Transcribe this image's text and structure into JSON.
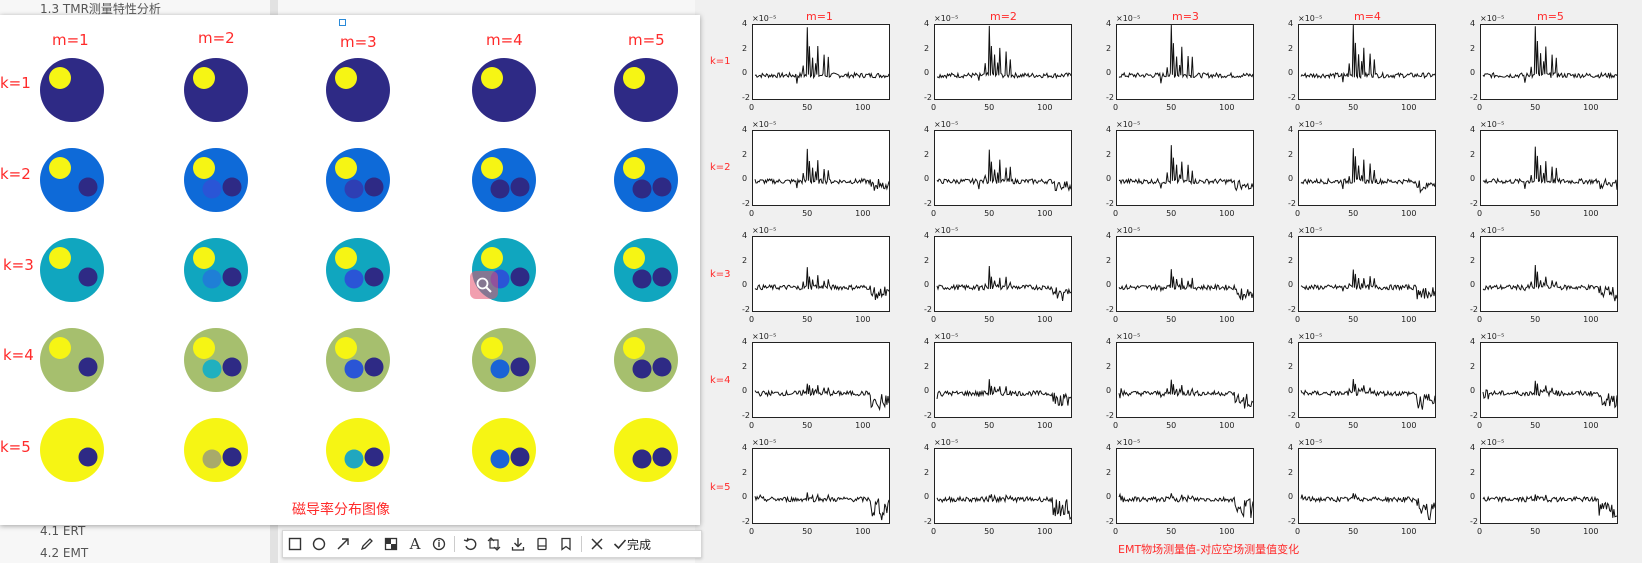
{
  "document": {
    "toc_top": "1.3 TMR测量特性分析",
    "toc_bottom": [
      "4.1 ERT",
      "4.2 EMT"
    ]
  },
  "left_figure": {
    "column_labels": [
      "m=1",
      "m=2",
      "m=3",
      "m=4",
      "m=5"
    ],
    "row_labels": [
      "k=1",
      "k=2",
      "k=3",
      "k=4",
      "k=5"
    ],
    "caption": "磁导率分布图像",
    "colors": {
      "k1": "#2e2a85",
      "k2": "#0e6ad8",
      "k3": "#10a6bf",
      "k4": "#a6bf6e",
      "k5": "#f6f514",
      "small_inclusion": "#f6f514",
      "dark_inclusion": "#2e2a85",
      "blue_inclusion": "#2a4fd0"
    }
  },
  "toolbar": {
    "icons": [
      "rectangle-icon",
      "circle-icon",
      "arrow-icon",
      "pen-icon",
      "mosaic-icon",
      "text-icon",
      "number-icon",
      "undo-icon",
      "crop-icon",
      "download-icon",
      "pin-icon",
      "bookmark-icon",
      "close-icon",
      "check-icon"
    ],
    "done_label": "完成"
  },
  "right_figure": {
    "column_labels": [
      "m=1",
      "m=2",
      "m=3",
      "m=4",
      "m=5"
    ],
    "row_labels": [
      "k=1",
      "k=2",
      "k=3",
      "k=4",
      "k=5"
    ],
    "caption": "EMT物场测量值-对应空场测量值变化",
    "ytick_labels": [
      "4",
      "2",
      "0",
      "-2"
    ],
    "xtick_labels": [
      "0",
      "50",
      "100"
    ],
    "exponent": "×10⁻⁵"
  }
}
